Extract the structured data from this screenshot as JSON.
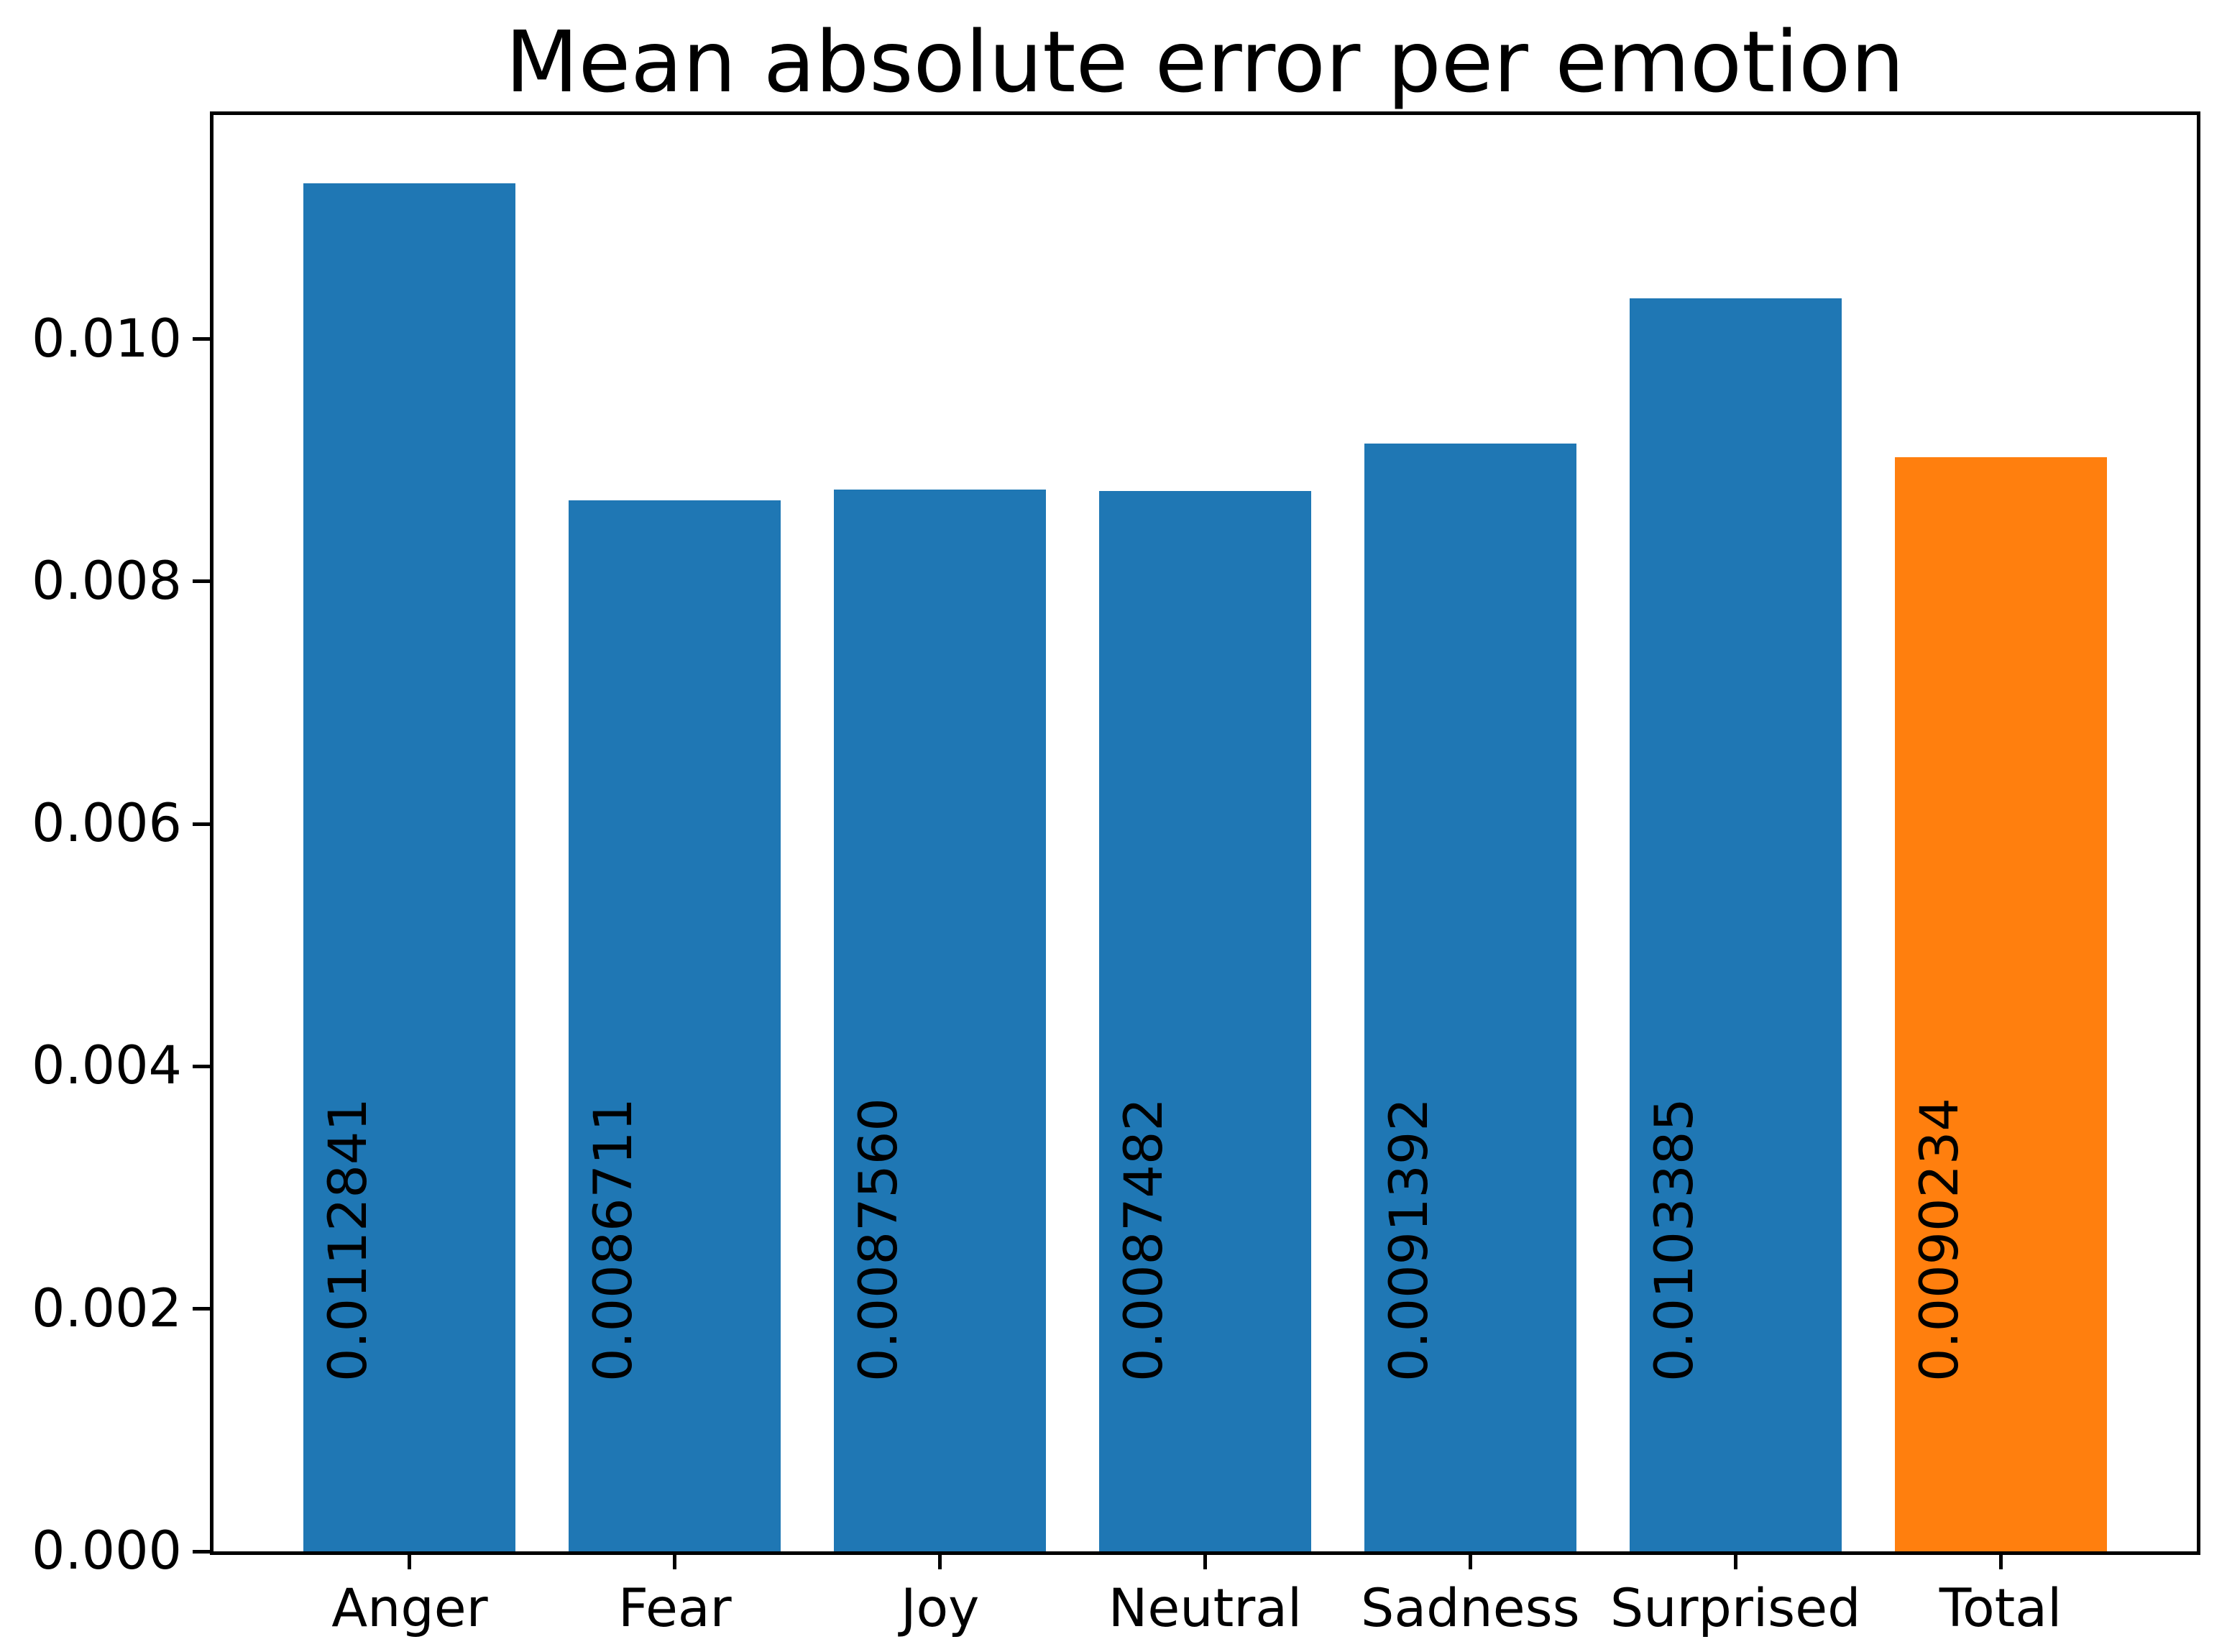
{
  "chart_data": {
    "type": "bar",
    "title": "Mean absolute error per emotion",
    "categories": [
      "Anger",
      "Fear",
      "Joy",
      "Neutral",
      "Sadness",
      "Surprised",
      "Total"
    ],
    "values": [
      0.0112841,
      0.0086711,
      0.008756,
      0.0087482,
      0.0091392,
      0.0103385,
      0.0090234
    ],
    "value_labels": [
      "0.0112841",
      "0.0086711",
      "0.0087560",
      "0.0087482",
      "0.0091392",
      "0.0103385",
      "0.0090234"
    ],
    "bar_colors": [
      "#1f77b4",
      "#1f77b4",
      "#1f77b4",
      "#1f77b4",
      "#1f77b4",
      "#1f77b4",
      "#ff7f0e"
    ],
    "xlabel": "",
    "ylabel": "",
    "xlim": [
      -0.74,
      6.74
    ],
    "ylim": [
      0,
      0.0118483
    ],
    "bar_width": 0.8,
    "yticks": [
      0,
      0.002,
      0.004,
      0.006,
      0.008,
      0.01
    ],
    "ytick_labels": [
      "0.000",
      "0.002",
      "0.004",
      "0.006",
      "0.008",
      "0.010"
    ],
    "value_label_y": 0.0014,
    "grid": false,
    "legend": null,
    "text_color": "#000000",
    "axis_color": "#000000",
    "background": "#ffffff"
  }
}
